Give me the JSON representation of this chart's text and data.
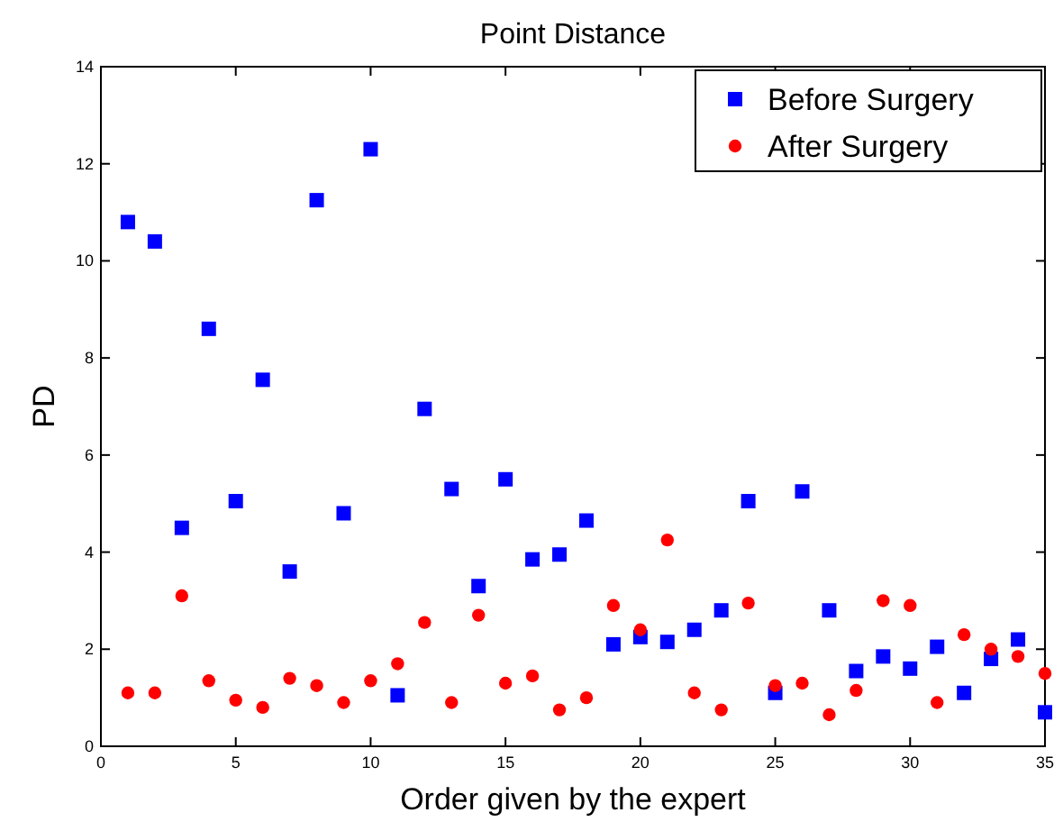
{
  "chart_data": {
    "type": "scatter",
    "title": "Point Distance",
    "xlabel": "Order given by the expert",
    "ylabel": "PD",
    "xlim": [
      0,
      35
    ],
    "xticks": [
      0,
      5,
      10,
      15,
      20,
      25,
      30,
      35
    ],
    "ylim": [
      0,
      14
    ],
    "yticks": [
      0,
      2,
      4,
      6,
      8,
      10,
      12,
      14
    ],
    "grid": false,
    "legend": "top right",
    "series": [
      {
        "name": "Before Surgery",
        "color": "#0000ff",
        "marker": "square",
        "x": [
          1,
          2,
          3,
          4,
          5,
          6,
          7,
          8,
          9,
          10,
          11,
          12,
          13,
          14,
          15,
          16,
          17,
          18,
          19,
          20,
          21,
          22,
          23,
          24,
          25,
          26,
          27,
          28,
          29,
          30,
          31,
          32,
          33,
          34,
          35
        ],
        "values": [
          10.8,
          10.4,
          4.5,
          8.6,
          5.05,
          7.55,
          3.6,
          11.25,
          4.8,
          12.3,
          1.05,
          6.95,
          5.3,
          3.3,
          5.5,
          3.85,
          3.95,
          4.65,
          2.1,
          2.25,
          2.15,
          2.4,
          2.8,
          5.05,
          1.1,
          5.25,
          2.8,
          1.55,
          1.85,
          1.6,
          2.05,
          1.1,
          1.8,
          2.2,
          0.7
        ]
      },
      {
        "name": "After Surgery",
        "color": "#ff0000",
        "marker": "circle",
        "x": [
          1,
          2,
          3,
          4,
          5,
          6,
          7,
          8,
          9,
          10,
          11,
          12,
          13,
          14,
          15,
          16,
          17,
          18,
          19,
          20,
          21,
          22,
          23,
          24,
          25,
          26,
          27,
          28,
          29,
          30,
          31,
          32,
          33,
          34,
          35
        ],
        "values": [
          1.1,
          1.1,
          3.1,
          1.35,
          0.95,
          0.8,
          1.4,
          1.25,
          0.9,
          1.35,
          1.7,
          2.55,
          0.9,
          2.7,
          1.3,
          1.45,
          0.75,
          1.0,
          2.9,
          2.4,
          4.25,
          1.1,
          0.75,
          2.95,
          1.25,
          1.3,
          0.65,
          1.15,
          3.0,
          2.9,
          0.9,
          2.3,
          2.0,
          1.85,
          1.5
        ]
      }
    ]
  }
}
